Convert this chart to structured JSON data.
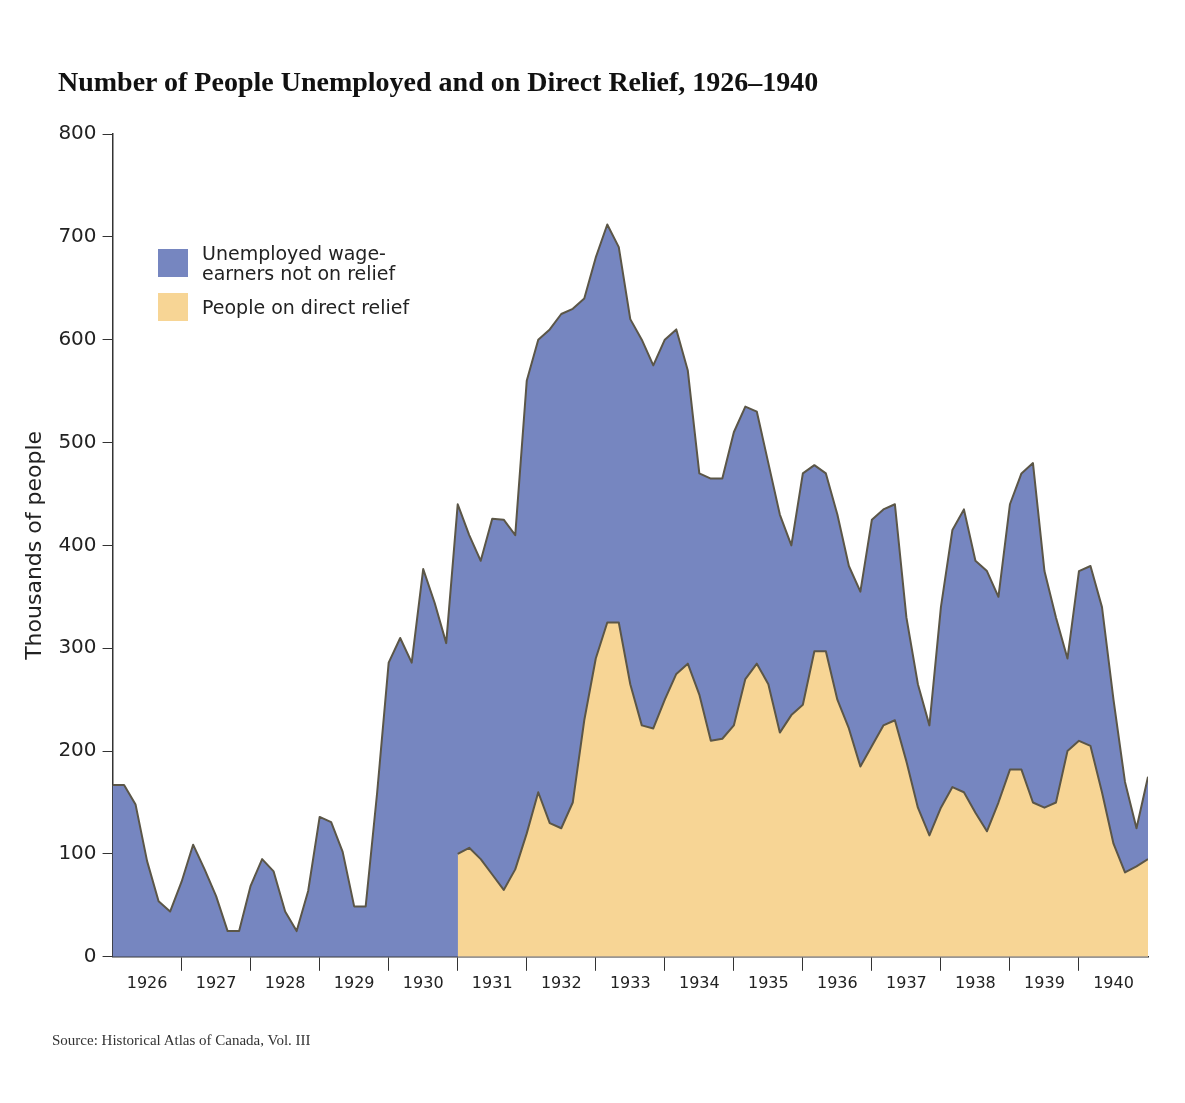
{
  "chart_data": {
    "type": "area",
    "title": "Number of People Unemployed and on Direct Relief, 1926–1940",
    "ylabel": "Thousands of people",
    "annotations": [
      "Source: Historical Atlas of Canada, Vol. III"
    ],
    "stacked": true,
    "x": [
      "1926-01",
      "1926-03",
      "1926-05",
      "1926-07",
      "1926-09",
      "1926-11",
      "1927-01",
      "1927-03",
      "1927-05",
      "1927-07",
      "1927-09",
      "1927-11",
      "1928-01",
      "1928-03",
      "1928-05",
      "1928-07",
      "1928-09",
      "1928-11",
      "1929-01",
      "1929-03",
      "1929-05",
      "1929-07",
      "1929-09",
      "1929-11",
      "1930-01",
      "1930-03",
      "1930-05",
      "1930-07",
      "1930-09",
      "1930-11",
      "1931-01",
      "1931-03",
      "1931-05",
      "1931-07",
      "1931-09",
      "1931-11",
      "1932-01",
      "1932-03",
      "1932-05",
      "1932-07",
      "1932-09",
      "1932-11",
      "1933-01",
      "1933-03",
      "1933-05",
      "1933-07",
      "1933-09",
      "1933-11",
      "1934-01",
      "1934-03",
      "1934-05",
      "1934-07",
      "1934-09",
      "1934-11",
      "1935-01",
      "1935-03",
      "1935-05",
      "1935-07",
      "1935-09",
      "1935-11",
      "1936-01",
      "1936-03",
      "1936-05",
      "1936-07",
      "1936-09",
      "1936-11",
      "1937-01",
      "1937-03",
      "1937-05",
      "1937-07",
      "1937-09",
      "1937-11",
      "1938-01",
      "1938-03",
      "1938-05",
      "1938-07",
      "1938-09",
      "1938-11",
      "1939-01",
      "1939-03",
      "1939-05",
      "1939-07",
      "1939-09",
      "1939-11",
      "1940-01",
      "1940-03",
      "1940-05",
      "1940-07",
      "1940-09",
      "1940-11",
      "1941-01"
    ],
    "series": [
      {
        "name": "People on direct relief",
        "color": "#f7d595",
        "values": [
          null,
          null,
          null,
          null,
          null,
          null,
          null,
          null,
          null,
          null,
          null,
          null,
          null,
          null,
          null,
          null,
          null,
          null,
          null,
          null,
          null,
          null,
          null,
          null,
          null,
          null,
          null,
          null,
          null,
          null,
          100,
          106,
          95,
          80,
          65,
          85,
          120,
          160,
          130,
          125,
          150,
          230,
          290,
          325,
          325,
          265,
          225,
          222,
          250,
          275,
          285,
          255,
          210,
          212,
          225,
          270,
          285,
          265,
          218,
          235,
          245,
          297,
          297,
          250,
          222,
          185,
          205,
          225,
          230,
          190,
          145,
          118,
          145,
          165,
          160,
          140,
          122,
          150,
          182,
          182,
          150,
          145,
          150,
          200,
          210,
          205,
          160,
          110,
          82,
          88,
          95
        ]
      },
      {
        "name": "Unemployed wage-earners not on relief",
        "color": "#7686c0",
        "values": [
          167,
          167,
          148,
          93,
          54,
          44,
          73,
          109,
          85,
          59,
          25,
          25,
          69,
          95,
          83,
          44,
          25,
          64,
          136,
          131,
          102,
          49,
          49,
          160,
          286,
          310,
          286,
          377,
          344,
          305,
          340,
          304,
          290,
          346,
          360,
          325,
          440,
          440,
          480,
          500,
          480,
          410,
          390,
          387,
          365,
          355,
          375,
          353,
          350,
          335,
          285,
          215,
          255,
          253,
          285,
          265,
          245,
          215,
          212,
          165,
          225,
          181,
          173,
          180,
          158,
          170,
          220,
          210,
          210,
          140,
          120,
          107,
          195,
          250,
          275,
          245,
          253,
          200,
          258,
          288,
          330,
          230,
          180,
          90,
          165,
          175,
          180,
          140,
          88,
          37,
          80
        ]
      }
    ],
    "xlim": [
      "1926-01",
      "1941-01"
    ],
    "xticks": [
      {
        "value": "1926-07",
        "label": "1926"
      },
      {
        "value": "1927-01",
        "label": null
      },
      {
        "value": "1927-07",
        "label": "1927"
      },
      {
        "value": "1928-01",
        "label": null
      },
      {
        "value": "1928-07",
        "label": "1928"
      },
      {
        "value": "1929-01",
        "label": null
      },
      {
        "value": "1929-07",
        "label": "1929"
      },
      {
        "value": "1930-01",
        "label": null
      },
      {
        "value": "1930-07",
        "label": "1930"
      },
      {
        "value": "1931-01",
        "label": null
      },
      {
        "value": "1931-07",
        "label": "1931"
      },
      {
        "value": "1932-01",
        "label": null
      },
      {
        "value": "1932-07",
        "label": "1932"
      },
      {
        "value": "1933-01",
        "label": null
      },
      {
        "value": "1933-07",
        "label": "1933"
      },
      {
        "value": "1934-01",
        "label": null
      },
      {
        "value": "1934-07",
        "label": "1934"
      },
      {
        "value": "1935-01",
        "label": null
      },
      {
        "value": "1935-07",
        "label": "1935"
      },
      {
        "value": "1936-01",
        "label": null
      },
      {
        "value": "1936-07",
        "label": "1936"
      },
      {
        "value": "1937-01",
        "label": null
      },
      {
        "value": "1937-07",
        "label": "1937"
      },
      {
        "value": "1938-01",
        "label": null
      },
      {
        "value": "1938-07",
        "label": "1938"
      },
      {
        "value": "1939-01",
        "label": null
      },
      {
        "value": "1939-07",
        "label": "1939"
      },
      {
        "value": "1940-01",
        "label": null
      },
      {
        "value": "1940-07",
        "label": "1940"
      }
    ],
    "ylim": [
      0,
      800
    ],
    "yticks": [
      0,
      100,
      200,
      300,
      400,
      500,
      600,
      700,
      800
    ],
    "legend": "top left"
  }
}
